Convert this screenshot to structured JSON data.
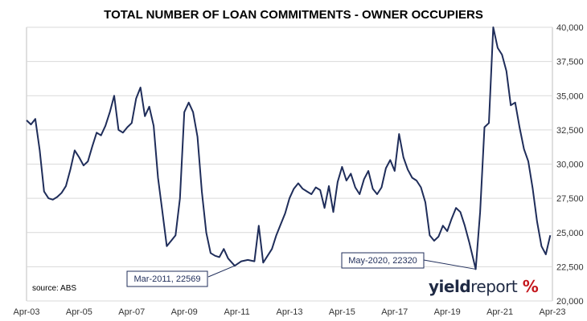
{
  "title": "TOTAL NUMBER OF LOAN COMMITMENTS - OWNER OCCUPIERS",
  "source": "source: ABS",
  "logo": {
    "part1": "yield",
    "part2": "report",
    "symbol": "%"
  },
  "colors": {
    "line": "#1f2d5a",
    "grid": "#d9d9d9",
    "axis": "#bfbfbf"
  },
  "chart_data": {
    "type": "line",
    "title": "TOTAL NUMBER OF LOAN COMMITMENTS - OWNER OCCUPIERS",
    "xlabel": "",
    "ylabel": "",
    "x_ticks": [
      "Apr-03",
      "Apr-05",
      "Apr-07",
      "Apr-09",
      "Apr-11",
      "Apr-13",
      "Apr-15",
      "Apr-17",
      "Apr-19",
      "Apr-21",
      "Apr-23"
    ],
    "y_ticks": [
      "20,000",
      "22,500",
      "25,000",
      "27,500",
      "30,000",
      "32,500",
      "35,000",
      "37,500",
      "40,000"
    ],
    "ylim": [
      20000,
      40000
    ],
    "xlim": [
      "Apr-03",
      "Apr-23"
    ],
    "y_axis_side": "right",
    "grid": "horizontal",
    "series": [
      {
        "values": [
          [
            "Apr-03",
            33200
          ],
          [
            "Jun-03",
            32900
          ],
          [
            "Aug-03",
            33300
          ],
          [
            "Oct-03",
            31000
          ],
          [
            "Dec-03",
            28000
          ],
          [
            "Feb-04",
            27500
          ],
          [
            "Apr-04",
            27400
          ],
          [
            "Jun-04",
            27600
          ],
          [
            "Aug-04",
            27900
          ],
          [
            "Oct-04",
            28400
          ],
          [
            "Dec-04",
            29600
          ],
          [
            "Feb-05",
            31000
          ],
          [
            "Apr-05",
            30500
          ],
          [
            "Jun-05",
            29900
          ],
          [
            "Aug-05",
            30200
          ],
          [
            "Oct-05",
            31300
          ],
          [
            "Dec-05",
            32300
          ],
          [
            "Feb-06",
            32100
          ],
          [
            "Apr-06",
            32800
          ],
          [
            "Jun-06",
            33800
          ],
          [
            "Aug-06",
            35000
          ],
          [
            "Oct-06",
            32500
          ],
          [
            "Dec-06",
            32300
          ],
          [
            "Feb-07",
            32700
          ],
          [
            "Apr-07",
            33000
          ],
          [
            "Jun-07",
            34800
          ],
          [
            "Aug-07",
            35600
          ],
          [
            "Oct-07",
            33500
          ],
          [
            "Dec-07",
            34200
          ],
          [
            "Feb-08",
            32800
          ],
          [
            "Apr-08",
            29000
          ],
          [
            "Jun-08",
            26500
          ],
          [
            "Aug-08",
            24000
          ],
          [
            "Oct-08",
            24400
          ],
          [
            "Dec-08",
            24800
          ],
          [
            "Feb-09",
            27500
          ],
          [
            "Apr-09",
            33800
          ],
          [
            "Jun-09",
            34500
          ],
          [
            "Aug-09",
            33800
          ],
          [
            "Oct-09",
            32000
          ],
          [
            "Dec-09",
            28000
          ],
          [
            "Feb-10",
            25000
          ],
          [
            "Apr-10",
            23500
          ],
          [
            "Jun-10",
            23300
          ],
          [
            "Aug-10",
            23200
          ],
          [
            "Oct-10",
            23800
          ],
          [
            "Dec-10",
            23100
          ],
          [
            "Mar-11",
            22569
          ],
          [
            "Jun-11",
            22900
          ],
          [
            "Sep-11",
            23000
          ],
          [
            "Dec-11",
            22900
          ],
          [
            "Feb-12",
            25500
          ],
          [
            "Apr-12",
            22800
          ],
          [
            "Jun-12",
            23300
          ],
          [
            "Aug-12",
            23800
          ],
          [
            "Oct-12",
            24800
          ],
          [
            "Dec-12",
            25600
          ],
          [
            "Feb-13",
            26400
          ],
          [
            "Apr-13",
            27500
          ],
          [
            "Jun-13",
            28200
          ],
          [
            "Aug-13",
            28600
          ],
          [
            "Oct-13",
            28200
          ],
          [
            "Dec-13",
            28000
          ],
          [
            "Feb-14",
            27800
          ],
          [
            "Apr-14",
            28300
          ],
          [
            "Jun-14",
            28100
          ],
          [
            "Aug-14",
            26800
          ],
          [
            "Oct-14",
            28400
          ],
          [
            "Dec-14",
            26500
          ],
          [
            "Feb-15",
            28700
          ],
          [
            "Apr-15",
            29800
          ],
          [
            "Jun-15",
            28800
          ],
          [
            "Aug-15",
            29300
          ],
          [
            "Oct-15",
            28300
          ],
          [
            "Dec-15",
            27800
          ],
          [
            "Feb-16",
            28900
          ],
          [
            "Apr-16",
            29500
          ],
          [
            "Jun-16",
            28200
          ],
          [
            "Aug-16",
            27800
          ],
          [
            "Oct-16",
            28300
          ],
          [
            "Dec-16",
            29700
          ],
          [
            "Feb-17",
            30300
          ],
          [
            "Apr-17",
            29500
          ],
          [
            "Jun-17",
            32200
          ],
          [
            "Aug-17",
            30500
          ],
          [
            "Oct-17",
            29600
          ],
          [
            "Dec-17",
            29000
          ],
          [
            "Feb-18",
            28800
          ],
          [
            "Apr-18",
            28300
          ],
          [
            "Jun-18",
            27200
          ],
          [
            "Aug-18",
            24800
          ],
          [
            "Oct-18",
            24400
          ],
          [
            "Dec-18",
            24700
          ],
          [
            "Feb-19",
            25500
          ],
          [
            "Apr-19",
            25100
          ],
          [
            "Jun-19",
            26000
          ],
          [
            "Aug-19",
            26800
          ],
          [
            "Oct-19",
            26500
          ],
          [
            "Dec-19",
            25500
          ],
          [
            "Feb-20",
            24300
          ],
          [
            "May-20",
            22320
          ],
          [
            "Jul-20",
            26500
          ],
          [
            "Sep-20",
            32700
          ],
          [
            "Nov-20",
            33000
          ],
          [
            "Jan-21",
            40000
          ],
          [
            "Mar-21",
            38500
          ],
          [
            "May-21",
            38000
          ],
          [
            "Jul-21",
            36800
          ],
          [
            "Sep-21",
            34300
          ],
          [
            "Nov-21",
            34500
          ],
          [
            "Jan-22",
            32700
          ],
          [
            "Mar-22",
            31100
          ],
          [
            "May-22",
            30200
          ],
          [
            "Jul-22",
            28200
          ],
          [
            "Sep-22",
            25800
          ],
          [
            "Nov-22",
            24000
          ],
          [
            "Jan-23",
            23400
          ],
          [
            "Mar-23",
            24800
          ]
        ]
      }
    ],
    "annotations": [
      {
        "text": "Mar-2011, 22569",
        "x": "Mar-11",
        "y": 22569
      },
      {
        "text": "May-2020, 22320",
        "x": "May-20",
        "y": 22320
      }
    ]
  }
}
